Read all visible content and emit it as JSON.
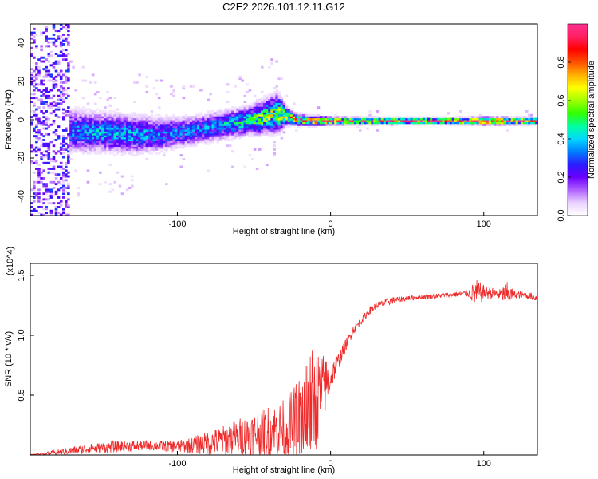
{
  "figure": {
    "title": "C2E2.2026.101.12.11.G12"
  },
  "chart_data": [
    {
      "type": "heatmap",
      "title": "",
      "xlabel": "Height of straight line (km)",
      "ylabel": "Frequency (Hz)",
      "xlim": [
        -196,
        135
      ],
      "ylim": [
        -50,
        50
      ],
      "x_ticks": [
        -100,
        0,
        100
      ],
      "x_tick_labels": [
        "-100",
        "0",
        "100"
      ],
      "y_ticks": [
        -40,
        -20,
        0,
        20,
        40
      ],
      "y_tick_labels": [
        "-40",
        "-20",
        "0",
        "20",
        "40"
      ],
      "colorbar": {
        "label": "Normalized spectral amplitude",
        "range": [
          0,
          1
        ],
        "ticks": [
          0.0,
          0.2,
          0.4,
          0.6,
          0.8
        ],
        "tick_labels": [
          "0.0",
          "0.2",
          "0.4",
          "0.6",
          "0.8"
        ],
        "colors": [
          "#ffffff",
          "#ead2ff",
          "#b060ff",
          "#6a00ff",
          "#2a1cff",
          "#0080ff",
          "#00d8ff",
          "#00ffa0",
          "#30ff00",
          "#a0ff00",
          "#ffff00",
          "#ffb000",
          "#ff5000",
          "#ff0000",
          "#ff2060",
          "#ff3090"
        ]
      },
      "ridge": {
        "x": [
          -196,
          -170,
          -150,
          -130,
          -110,
          -90,
          -70,
          -55,
          -45,
          -35,
          -30,
          -25,
          -15,
          0,
          20,
          50,
          80,
          100,
          135
        ],
        "freq_hz": [
          -3,
          -6,
          -7,
          -8,
          -8,
          -6,
          -3,
          -1,
          1,
          3,
          2,
          0,
          -1,
          -1,
          -1,
          -1,
          -1,
          -1,
          -1
        ],
        "spread_hz": [
          30,
          9,
          8,
          8,
          7,
          6,
          6,
          6,
          7,
          8,
          4,
          2.5,
          2,
          1.5,
          1.3,
          1.2,
          1.2,
          1.5,
          1.2
        ],
        "peak_amplitude": [
          0.25,
          0.3,
          0.35,
          0.35,
          0.3,
          0.3,
          0.35,
          0.4,
          0.5,
          0.55,
          0.6,
          0.65,
          0.75,
          0.85,
          0.9,
          0.92,
          0.95,
          0.92,
          0.95
        ]
      }
    },
    {
      "type": "line",
      "title": "",
      "xlabel": "Height of straight line (km)",
      "ylabel": "SNR (10 * v/v)",
      "y_scale_note": "(x10^4)",
      "xlim": [
        -196,
        135
      ],
      "ylim": [
        0,
        1.6
      ],
      "x_ticks": [
        -100,
        0,
        100
      ],
      "x_tick_labels": [
        "-100",
        "0",
        "100"
      ],
      "y_ticks": [
        0.5,
        1.0,
        1.5
      ],
      "y_tick_labels": [
        "0.5",
        "1.0",
        "1.5"
      ],
      "series": [
        {
          "name": "SNR",
          "color": "#ee2a2a",
          "x": [
            -196,
            -180,
            -160,
            -140,
            -120,
            -100,
            -90,
            -80,
            -70,
            -60,
            -50,
            -40,
            -30,
            -25,
            -20,
            -15,
            -10,
            -5,
            0,
            5,
            10,
            15,
            20,
            25,
            30,
            40,
            50,
            60,
            70,
            80,
            90,
            95,
            100,
            105,
            110,
            115,
            120,
            130,
            135
          ],
          "values": [
            0.0,
            0.02,
            0.05,
            0.07,
            0.08,
            0.07,
            0.08,
            0.1,
            0.12,
            0.15,
            0.18,
            0.2,
            0.22,
            0.25,
            0.3,
            0.38,
            0.45,
            0.55,
            0.65,
            0.78,
            0.92,
            1.05,
            1.12,
            1.2,
            1.25,
            1.29,
            1.31,
            1.32,
            1.33,
            1.34,
            1.35,
            1.35,
            1.36,
            1.35,
            1.34,
            1.35,
            1.34,
            1.33,
            1.31
          ],
          "noise_amplitude": [
            0.0,
            0.02,
            0.04,
            0.05,
            0.04,
            0.05,
            0.07,
            0.1,
            0.13,
            0.16,
            0.18,
            0.22,
            0.25,
            0.3,
            0.4,
            0.5,
            0.45,
            0.3,
            0.12,
            0.07,
            0.05,
            0.04,
            0.03,
            0.03,
            0.03,
            0.03,
            0.02,
            0.02,
            0.02,
            0.02,
            0.03,
            0.12,
            0.06,
            0.05,
            0.04,
            0.1,
            0.03,
            0.03,
            0.03
          ]
        }
      ]
    }
  ]
}
